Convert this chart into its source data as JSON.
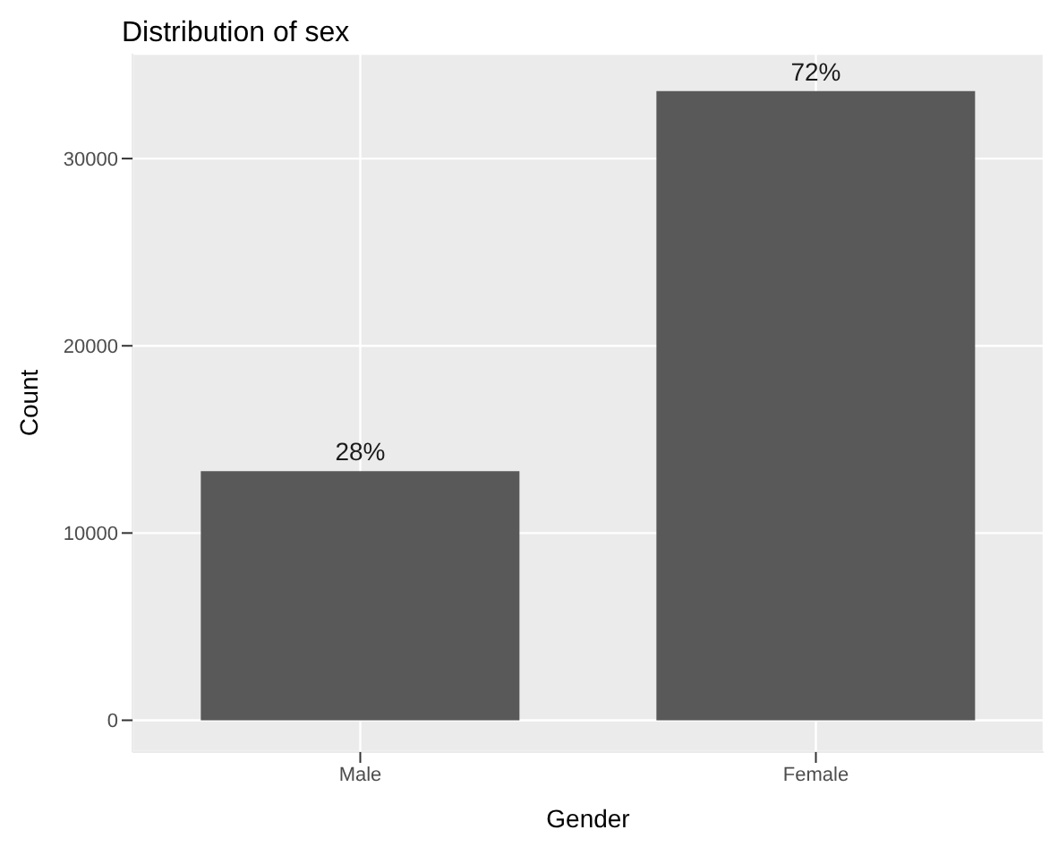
{
  "chart_data": {
    "type": "bar",
    "title": "Distribution of sex",
    "xlabel": "Gender",
    "ylabel": "Count",
    "categories": [
      "Male",
      "Female"
    ],
    "values": [
      13300,
      33600
    ],
    "annotations": [
      {
        "text": "28%",
        "x": "Male",
        "y": 13300
      },
      {
        "text": "72%",
        "x": "Female",
        "y": 33600
      }
    ],
    "color": "#595959",
    "ylim": [
      -1700,
      35600
    ],
    "yticks": [
      0,
      10000,
      20000,
      30000
    ],
    "grid": true
  }
}
